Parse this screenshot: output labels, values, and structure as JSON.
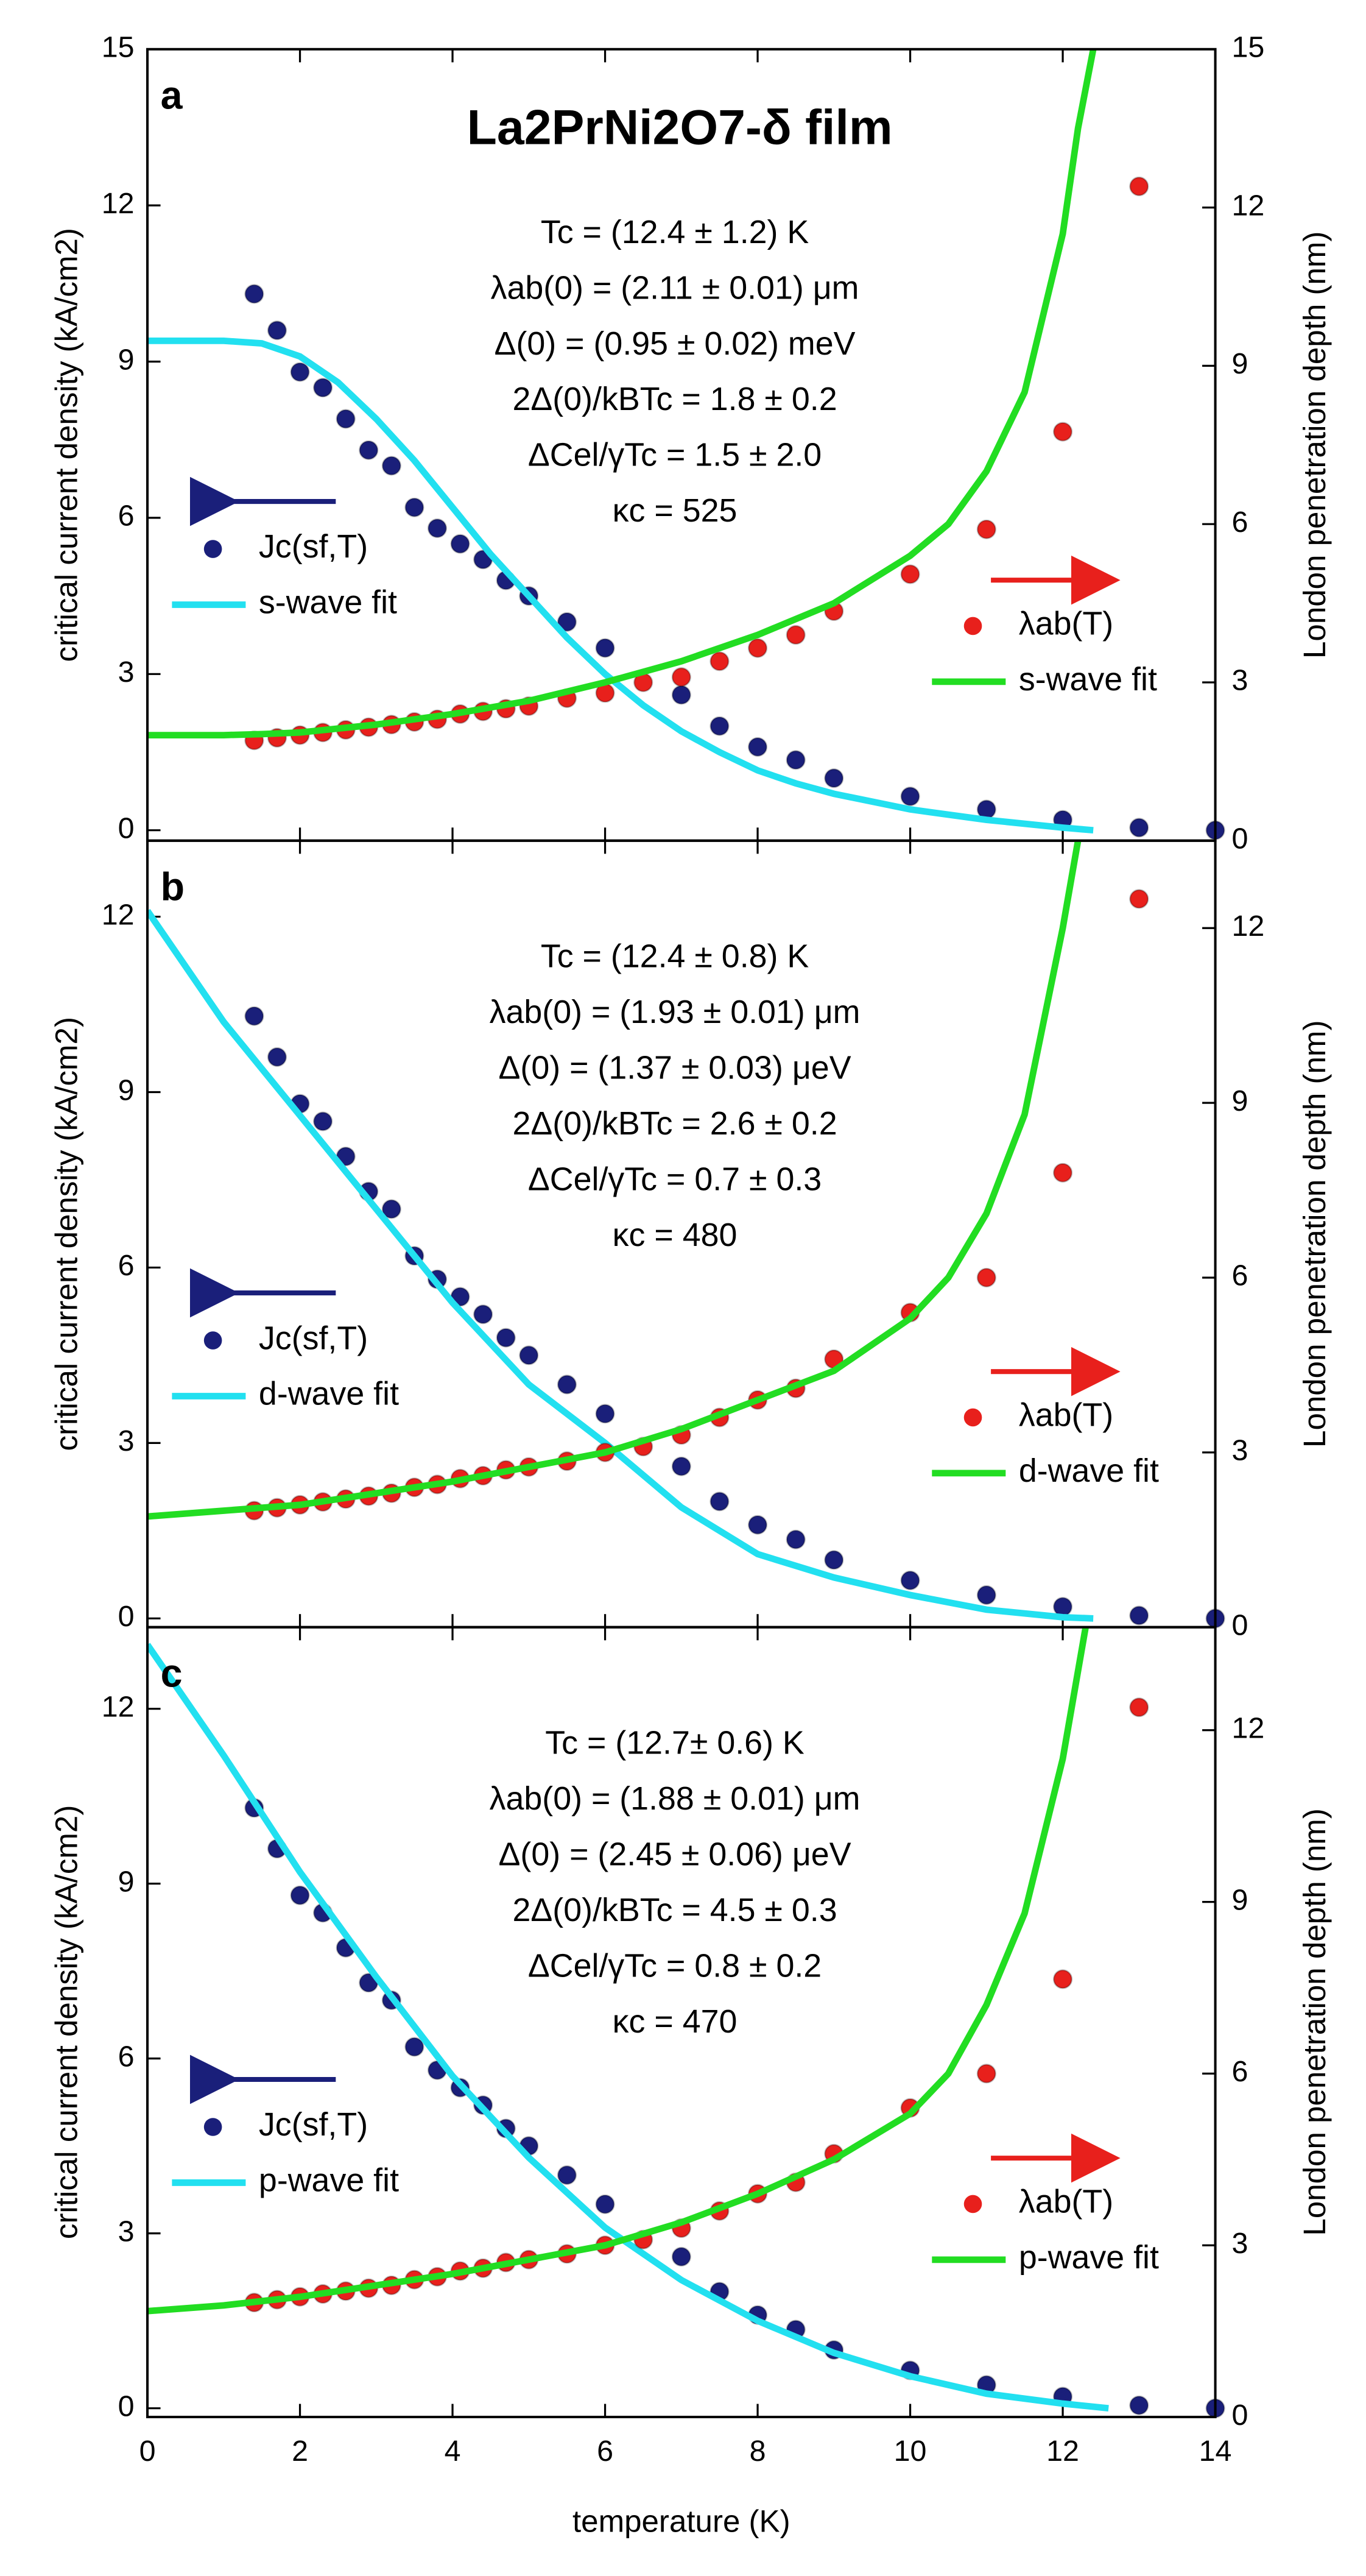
{
  "chart_data": [
    {
      "type": "scatter",
      "panel_label": "a",
      "title": "La2PrNi2O7-δ film",
      "ylabel": "critical current density (kA/cm2)",
      "y2label": "London penetration depth (nm)",
      "xlim": [
        0,
        14
      ],
      "xticks": [
        0,
        2,
        4,
        6,
        8,
        10,
        12,
        14
      ],
      "ylim": [
        -0.2,
        15
      ],
      "yticks": [
        0,
        3,
        6,
        9,
        12,
        15
      ],
      "y2lim": [
        0,
        15
      ],
      "y2ticks": [
        0,
        3,
        6,
        9,
        12,
        15
      ],
      "annotations": [
        "Tc = (12.4 ± 1.2) K",
        "λab(0) = (2.11 ± 0.01) μm",
        "Δ(0) = (0.95 ± 0.02) meV",
        "2Δ(0)/kBTc = 1.8 ± 0.2",
        "ΔCel/γTc = 1.5 ± 2.0",
        "κc = 525"
      ],
      "series": [
        {
          "name": "Jc(sf,T)",
          "color": "#1a1f7a",
          "mode": "marker",
          "x": [
            1.4,
            1.7,
            2.0,
            2.3,
            2.6,
            2.9,
            3.2,
            3.5,
            3.8,
            4.1,
            4.4,
            4.7,
            5.0,
            5.5,
            6.0,
            7.0,
            7.5,
            8.0,
            8.5,
            9.0,
            10,
            11,
            12,
            13,
            14
          ],
          "values": [
            10.3,
            9.6,
            8.8,
            8.5,
            7.9,
            7.3,
            7.0,
            6.2,
            5.8,
            5.5,
            5.2,
            4.8,
            4.5,
            4.0,
            3.5,
            2.6,
            2.0,
            1.6,
            1.35,
            1.0,
            0.65,
            0.4,
            0.2,
            0.05,
            0.0
          ]
        },
        {
          "name": "s-wave fit",
          "color": "#22e0f0",
          "mode": "line",
          "x": [
            0,
            1,
            1.5,
            2,
            2.5,
            3,
            3.5,
            4,
            4.5,
            5,
            5.5,
            6,
            6.5,
            7,
            7.5,
            8,
            8.5,
            9,
            10,
            11,
            12,
            12.4
          ],
          "values": [
            9.4,
            9.4,
            9.35,
            9.1,
            8.6,
            7.9,
            7.1,
            6.2,
            5.3,
            4.5,
            3.7,
            3.0,
            2.4,
            1.9,
            1.5,
            1.15,
            0.9,
            0.7,
            0.4,
            0.2,
            0.05,
            0.0
          ]
        },
        {
          "name": "λab(T)",
          "color": "#e8201c",
          "mode": "marker",
          "axis": "y2",
          "x": [
            1.4,
            1.7,
            2.0,
            2.3,
            2.6,
            2.9,
            3.2,
            3.5,
            3.8,
            4.1,
            4.4,
            4.7,
            5.0,
            5.5,
            6.0,
            6.5,
            7.0,
            7.5,
            8.0,
            8.5,
            9.0,
            10,
            11,
            12,
            13
          ],
          "values": [
            1.9,
            1.95,
            2.0,
            2.05,
            2.1,
            2.15,
            2.2,
            2.25,
            2.3,
            2.4,
            2.45,
            2.5,
            2.55,
            2.7,
            2.8,
            3.0,
            3.1,
            3.4,
            3.65,
            3.9,
            4.35,
            5.05,
            5.9,
            7.75,
            12.4
          ]
        },
        {
          "name": "s-wave fit",
          "color": "#22dd22",
          "mode": "line",
          "axis": "y2",
          "x": [
            0,
            1,
            1.5,
            2,
            3,
            4,
            5,
            6,
            7,
            8,
            9,
            10,
            10.5,
            11,
            11.5,
            12,
            12.2,
            12.4
          ],
          "values": [
            2.0,
            2.0,
            2.02,
            2.05,
            2.2,
            2.4,
            2.65,
            3.0,
            3.4,
            3.9,
            4.5,
            5.4,
            6.0,
            7.0,
            8.5,
            11.5,
            13.5,
            15
          ]
        }
      ]
    },
    {
      "type": "scatter",
      "panel_label": "b",
      "ylabel": "critical current density (kA/cm2)",
      "y2label": "London penetration depth (nm)",
      "xlim": [
        0,
        14
      ],
      "xticks": [
        0,
        2,
        4,
        6,
        8,
        10,
        12,
        14
      ],
      "ylim": [
        -0.15,
        13.3
      ],
      "yticks": [
        0,
        3,
        6,
        9,
        12
      ],
      "y2lim": [
        0,
        13.5
      ],
      "y2ticks": [
        0,
        3,
        6,
        9,
        12
      ],
      "annotations": [
        "Tc = (12.4 ± 0.8) K",
        "λab(0) = (1.93 ± 0.01) μm",
        "Δ(0) = (1.37 ± 0.03) μeV",
        "2Δ(0)/kBTc = 2.6 ± 0.2",
        "ΔCel/γTc = 0.7 ± 0.3",
        "κc = 480"
      ],
      "series": [
        {
          "name": "Jc(sf,T)",
          "color": "#1a1f7a",
          "mode": "marker",
          "x": [
            1.4,
            1.7,
            2.0,
            2.3,
            2.6,
            2.9,
            3.2,
            3.5,
            3.8,
            4.1,
            4.4,
            4.7,
            5.0,
            5.5,
            6.0,
            7.0,
            7.5,
            8.0,
            8.5,
            9.0,
            10,
            11,
            12,
            13,
            14
          ],
          "values": [
            10.3,
            9.6,
            8.8,
            8.5,
            7.9,
            7.3,
            7.0,
            6.2,
            5.8,
            5.5,
            5.2,
            4.8,
            4.5,
            4.0,
            3.5,
            2.6,
            2.0,
            1.6,
            1.35,
            1.0,
            0.65,
            0.4,
            0.2,
            0.05,
            0.0
          ]
        },
        {
          "name": "d-wave fit",
          "color": "#22e0f0",
          "mode": "line",
          "x": [
            0,
            1,
            2,
            3,
            4,
            5,
            6,
            7,
            8,
            9,
            10,
            11,
            12,
            12.4
          ],
          "values": [
            12.1,
            10.2,
            8.6,
            7.0,
            5.4,
            4.0,
            3.0,
            1.9,
            1.1,
            0.7,
            0.4,
            0.15,
            0.02,
            0.0
          ]
        },
        {
          "name": "λab(T)",
          "color": "#e8201c",
          "mode": "marker",
          "axis": "y2",
          "x": [
            1.4,
            1.7,
            2.0,
            2.3,
            2.6,
            2.9,
            3.2,
            3.5,
            3.8,
            4.1,
            4.4,
            4.7,
            5.0,
            5.5,
            6.0,
            6.5,
            7.0,
            7.5,
            8.0,
            8.5,
            9.0,
            10,
            11,
            12,
            13
          ],
          "values": [
            2.0,
            2.05,
            2.1,
            2.15,
            2.2,
            2.25,
            2.3,
            2.4,
            2.45,
            2.55,
            2.6,
            2.7,
            2.75,
            2.85,
            3.0,
            3.1,
            3.3,
            3.6,
            3.9,
            4.1,
            4.6,
            5.4,
            6.0,
            7.8,
            12.5
          ]
        },
        {
          "name": "d-wave fit",
          "color": "#22dd22",
          "mode": "line",
          "axis": "y2",
          "x": [
            0,
            1,
            2,
            3,
            4,
            5,
            6,
            7,
            8,
            9,
            10,
            10.5,
            11,
            11.5,
            12,
            12.2
          ],
          "values": [
            1.9,
            2.0,
            2.1,
            2.3,
            2.5,
            2.75,
            3.0,
            3.4,
            3.9,
            4.4,
            5.3,
            6.0,
            7.1,
            8.8,
            12,
            13.5
          ]
        }
      ]
    },
    {
      "type": "scatter",
      "panel_label": "c",
      "ylabel": "critical current density (kA/cm2)",
      "y2label": "London penetration depth (nm)",
      "xlabel": "temperature (K)",
      "xlim": [
        0,
        14
      ],
      "xticks": [
        0,
        2,
        4,
        6,
        8,
        10,
        12,
        14
      ],
      "ylim": [
        -0.15,
        13.4
      ],
      "yticks": [
        0,
        3,
        6,
        9,
        12
      ],
      "y2lim": [
        0,
        13.8
      ],
      "y2ticks": [
        0,
        3,
        6,
        9,
        12
      ],
      "annotations": [
        "Tc = (12.7± 0.6) K",
        "λab(0) = (1.88 ± 0.01) μm",
        "Δ(0) = (2.45 ± 0.06) μeV",
        "2Δ(0)/kBTc = 4.5 ± 0.3",
        "ΔCel/γTc = 0.8 ± 0.2",
        "κc = 470"
      ],
      "series": [
        {
          "name": "Jc(sf,T)",
          "color": "#1a1f7a",
          "mode": "marker",
          "x": [
            1.4,
            1.7,
            2.0,
            2.3,
            2.6,
            2.9,
            3.2,
            3.5,
            3.8,
            4.1,
            4.4,
            4.7,
            5.0,
            5.5,
            6.0,
            7.0,
            7.5,
            8.0,
            8.5,
            9.0,
            10,
            11,
            12,
            13,
            14
          ],
          "values": [
            10.3,
            9.6,
            8.8,
            8.5,
            7.9,
            7.3,
            7.0,
            6.2,
            5.8,
            5.5,
            5.2,
            4.8,
            4.5,
            4.0,
            3.5,
            2.6,
            2.0,
            1.6,
            1.35,
            1.0,
            0.65,
            0.4,
            0.2,
            0.05,
            0.0
          ]
        },
        {
          "name": "p-wave fit",
          "color": "#22e0f0",
          "mode": "line",
          "x": [
            0,
            1,
            2,
            3,
            4,
            5,
            6,
            7,
            8,
            9,
            10,
            11,
            12,
            12.6
          ],
          "values": [
            13.1,
            11.2,
            9.2,
            7.4,
            5.7,
            4.3,
            3.1,
            2.2,
            1.5,
            0.95,
            0.55,
            0.25,
            0.08,
            0.0
          ]
        },
        {
          "name": "λab(T)",
          "color": "#e8201c",
          "mode": "marker",
          "axis": "y2",
          "x": [
            1.4,
            1.7,
            2.0,
            2.3,
            2.6,
            2.9,
            3.2,
            3.5,
            3.8,
            4.1,
            4.4,
            4.7,
            5.0,
            5.5,
            6.0,
            6.5,
            7.0,
            7.5,
            8.0,
            8.5,
            9.0,
            10,
            11,
            12,
            13
          ],
          "values": [
            2.0,
            2.05,
            2.1,
            2.15,
            2.2,
            2.25,
            2.3,
            2.4,
            2.45,
            2.55,
            2.6,
            2.7,
            2.75,
            2.85,
            3.0,
            3.1,
            3.3,
            3.6,
            3.9,
            4.1,
            4.6,
            5.4,
            6.0,
            7.65,
            12.4
          ]
        },
        {
          "name": "p-wave fit",
          "color": "#22dd22",
          "mode": "line",
          "axis": "y2",
          "x": [
            0,
            1,
            2,
            3,
            4,
            5,
            6,
            7,
            8,
            9,
            10,
            10.5,
            11,
            11.5,
            12,
            12.3
          ],
          "values": [
            1.85,
            1.95,
            2.1,
            2.3,
            2.5,
            2.75,
            3.0,
            3.4,
            3.9,
            4.5,
            5.3,
            6.0,
            7.2,
            8.8,
            11.5,
            13.8
          ]
        }
      ]
    }
  ]
}
